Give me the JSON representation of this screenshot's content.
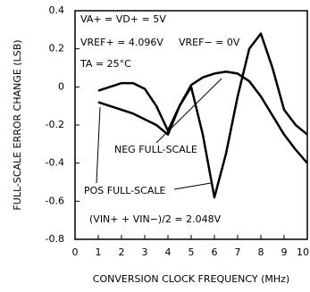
{
  "chart_data": {
    "type": "line",
    "xlabel": "CONVERSION CLOCK FREQUENCY (MHz)",
    "ylabel": "FULL-SCALE ERROR CHANGE (LSB)",
    "annotations": [
      "VA+ = VD+ = 5V",
      "VREF+ = 4.096V",
      "VREF− = 0V",
      "TA = 25°C",
      "(VIN+ + VIN−)/2 = 2.048V"
    ],
    "x": [
      1,
      1.5,
      2,
      2.5,
      3,
      3.5,
      4,
      4.5,
      5,
      5.5,
      6,
      6.5,
      7,
      7.5,
      8,
      8.5,
      9,
      9.5,
      10
    ],
    "series": [
      {
        "name": "NEG FULL-SCALE",
        "color": "#000000",
        "values": [
          -0.02,
          0.0,
          0.02,
          0.02,
          -0.01,
          -0.1,
          -0.23,
          -0.1,
          0.01,
          0.05,
          0.07,
          0.08,
          0.07,
          0.03,
          -0.05,
          -0.15,
          -0.25,
          -0.33,
          -0.4
        ]
      },
      {
        "name": "POS FULL-SCALE",
        "color": "#000000",
        "values": [
          -0.08,
          -0.1,
          -0.12,
          -0.14,
          -0.17,
          -0.2,
          -0.25,
          -0.1,
          0.0,
          -0.25,
          -0.58,
          -0.35,
          -0.05,
          0.2,
          0.28,
          0.1,
          -0.12,
          -0.2,
          -0.25
        ]
      }
    ],
    "xlim": [
      0,
      10
    ],
    "ylim": [
      -0.8,
      0.4
    ],
    "xticks": [
      0,
      1,
      2,
      3,
      4,
      5,
      6,
      7,
      8,
      9,
      10
    ],
    "yticks": [
      0.4,
      0.2,
      0,
      -0.2,
      -0.4,
      -0.6,
      -0.8
    ],
    "grid": false
  }
}
